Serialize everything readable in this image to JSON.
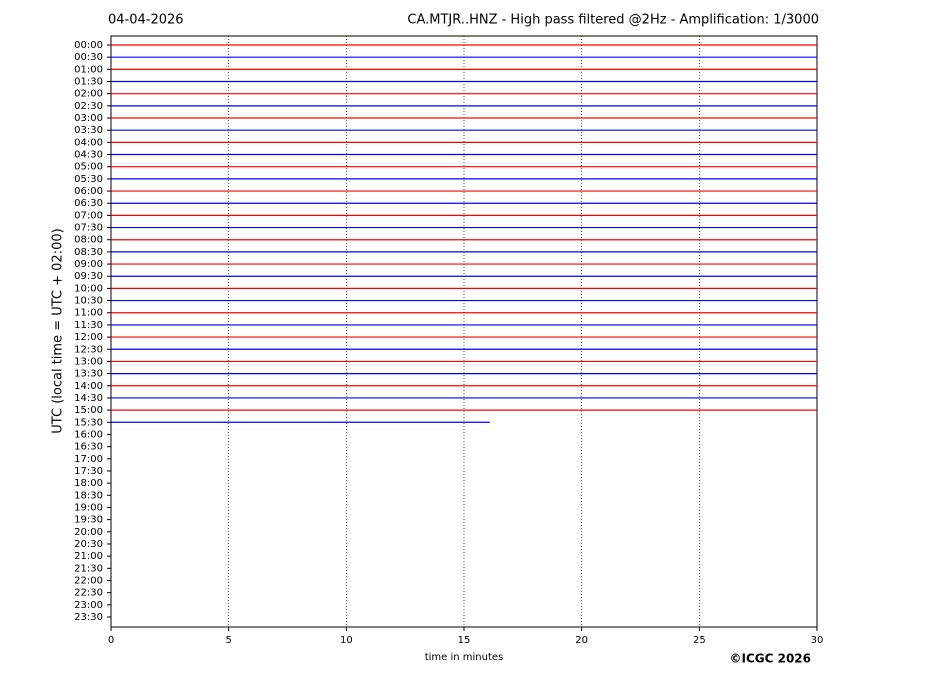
{
  "chart_data": {
    "type": "helicorder",
    "date": "04-04-2026",
    "title": "CA.MTJR..HNZ - High pass filtered @2Hz - Amplification: 1/3000",
    "xlabel": "time in minutes",
    "ylabel": "UTC (local time = UTC + 02:00)",
    "copyright": "©ICGC 2026",
    "categories": [
      "00:00",
      "00:30",
      "01:00",
      "01:30",
      "02:00",
      "02:30",
      "03:00",
      "03:30",
      "04:00",
      "04:30",
      "05:00",
      "05:30",
      "06:00",
      "06:30",
      "07:00",
      "07:30",
      "08:00",
      "08:30",
      "09:00",
      "09:30",
      "10:00",
      "10:30",
      "11:00",
      "11:30",
      "12:00",
      "12:30",
      "13:00",
      "13:30",
      "14:00",
      "14:30",
      "15:00",
      "15:30",
      "16:00",
      "16:30",
      "17:00",
      "17:30",
      "18:00",
      "18:30",
      "19:00",
      "19:30",
      "20:00",
      "20:30",
      "21:00",
      "21:30",
      "22:00",
      "22:30",
      "23:00",
      "23:30"
    ],
    "trace_end": [
      30,
      30,
      30,
      30,
      30,
      30,
      30,
      30,
      30,
      30,
      30,
      30,
      30,
      30,
      30,
      30,
      30,
      30,
      30,
      30,
      30,
      30,
      30,
      30,
      30,
      30,
      30,
      30,
      30,
      30,
      30,
      16.1
    ],
    "colors": [
      "#ff0000",
      "#0000ff"
    ],
    "xlim": [
      0,
      30
    ],
    "xticks": [
      0,
      5,
      10,
      15,
      20,
      25,
      30
    ],
    "grid": true
  }
}
